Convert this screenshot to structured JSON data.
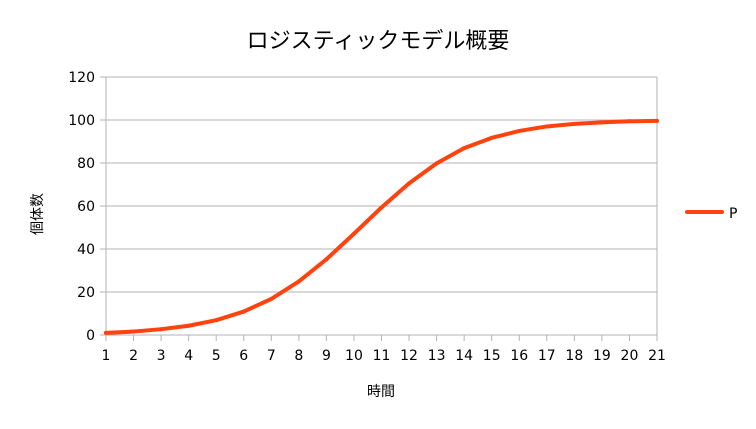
{
  "chart_data": {
    "type": "line",
    "title": "ロジスティックモデル概要",
    "xlabel": "時間",
    "ylabel": "個体数",
    "x": [
      1,
      2,
      3,
      4,
      5,
      6,
      7,
      8,
      9,
      10,
      11,
      12,
      13,
      14,
      15,
      16,
      17,
      18,
      19,
      20,
      21
    ],
    "xlim": [
      1,
      21
    ],
    "ylim": [
      0,
      120
    ],
    "yticks": [
      0,
      20,
      40,
      60,
      80,
      100,
      120
    ],
    "grid": "horizontal",
    "legend_position": "right",
    "series": [
      {
        "name": "P",
        "color": "#ff420e",
        "values": [
          1,
          1.6,
          2.7,
          4.3,
          6.9,
          10.9,
          16.8,
          24.9,
          35.2,
          47.1,
          59.3,
          70.5,
          79.8,
          86.9,
          91.7,
          94.9,
          97.0,
          98.2,
          98.9,
          99.4,
          99.6
        ]
      }
    ],
    "colors": {
      "axis": "#b3b3b3",
      "grid": "#b3b3b3",
      "text": "#000000"
    }
  }
}
